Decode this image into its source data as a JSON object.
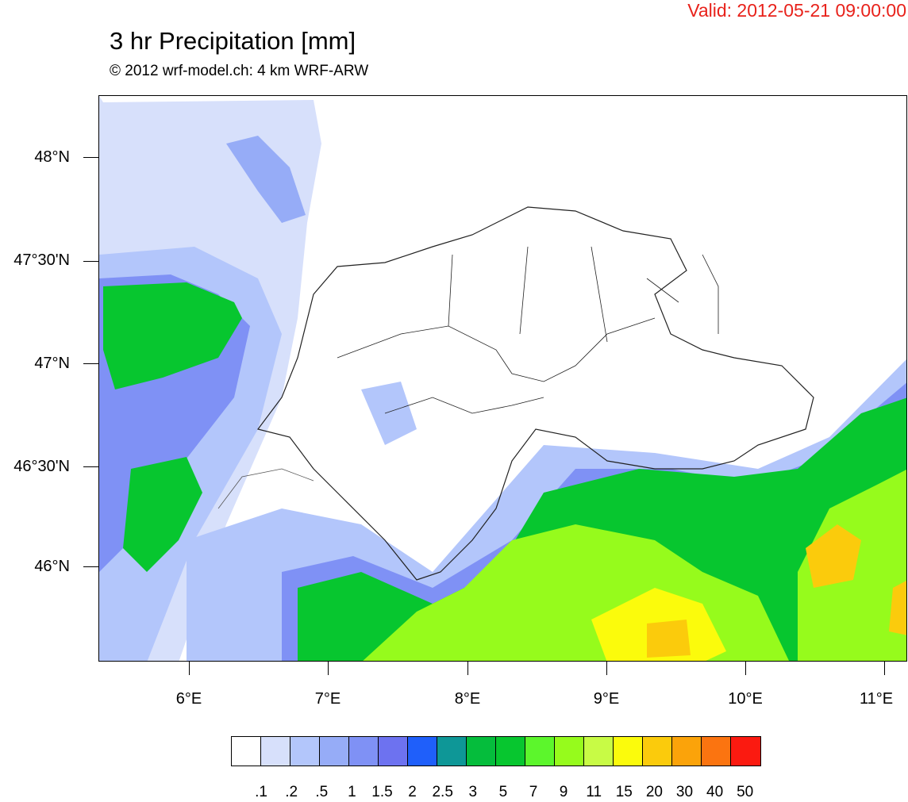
{
  "header": {
    "valid": "Valid: 2012-05-21 09:00:00",
    "title": "3 hr Precipitation [mm]",
    "subtitle": "© 2012 wrf-model.ch: 4 km WRF-ARW"
  },
  "axes": {
    "lat_labels": [
      "48°N",
      "47°30'N",
      "47°N",
      "46°30'N",
      "46°N"
    ],
    "lon_labels": [
      "6°E",
      "7°E",
      "8°E",
      "9°E",
      "10°E",
      "11°E"
    ]
  },
  "legend": {
    "colors": [
      "#ffffff",
      "#d7e0fb",
      "#b3c6fb",
      "#96acf7",
      "#7f91f5",
      "#6d72f0",
      "#1f5ffa",
      "#0e9797",
      "#05bd3c",
      "#07c62f",
      "#5cf62c",
      "#96fb1c",
      "#c8fb45",
      "#fbfb0c",
      "#fbcb0c",
      "#fba30a",
      "#fb7410",
      "#fb1a10"
    ],
    "labels": [
      ".1",
      ".2",
      ".5",
      "1",
      "1.5",
      "2",
      "2.5",
      "3",
      "5",
      "7",
      "9",
      "11",
      "15",
      "20",
      "30",
      "40",
      "50"
    ]
  }
}
